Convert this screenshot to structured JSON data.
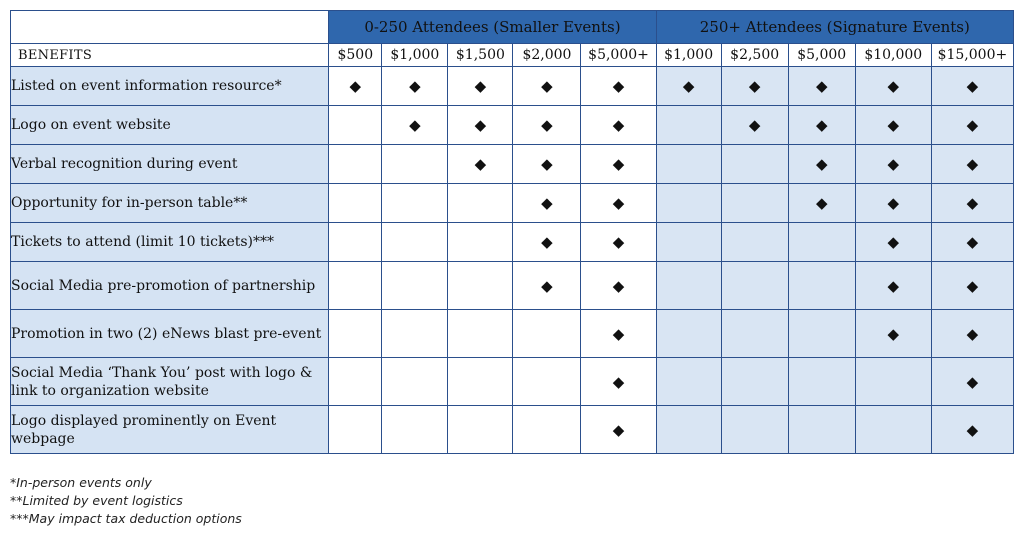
{
  "groups": {
    "small": "0-250 Attendees (Smaller Events)",
    "signature": "250+ Attendees (Signature Events)"
  },
  "benefits_header": "BENEFITS",
  "small_tiers": [
    "$500",
    "$1,000",
    "$1,500",
    "$2,000",
    "$5,000+"
  ],
  "signature_tiers": [
    "$1,000",
    "$2,500",
    "$5,000",
    "$10,000",
    "$15,000+"
  ],
  "marker": "◆",
  "rows": [
    {
      "benefit": "Listed on event information resource*",
      "small": [
        1,
        1,
        1,
        1,
        1
      ],
      "signature": [
        1,
        1,
        1,
        1,
        1
      ]
    },
    {
      "benefit": "Logo on event website",
      "small": [
        0,
        1,
        1,
        1,
        1
      ],
      "signature": [
        0,
        1,
        1,
        1,
        1
      ]
    },
    {
      "benefit": "Verbal recognition during event",
      "small": [
        0,
        0,
        1,
        1,
        1
      ],
      "signature": [
        0,
        0,
        1,
        1,
        1
      ]
    },
    {
      "benefit": "Opportunity for in-person table**",
      "small": [
        0,
        0,
        0,
        1,
        1
      ],
      "signature": [
        0,
        0,
        1,
        1,
        1
      ]
    },
    {
      "benefit": "Tickets to attend (limit 10 tickets)***",
      "small": [
        0,
        0,
        0,
        1,
        1
      ],
      "signature": [
        0,
        0,
        0,
        1,
        1
      ]
    },
    {
      "benefit": "Social Media pre-promotion of partnership",
      "small": [
        0,
        0,
        0,
        1,
        1
      ],
      "signature": [
        0,
        0,
        0,
        1,
        1
      ]
    },
    {
      "benefit": "Promotion in two (2) eNews blast pre-event",
      "small": [
        0,
        0,
        0,
        0,
        1
      ],
      "signature": [
        0,
        0,
        0,
        1,
        1
      ]
    },
    {
      "benefit": "Social Media ‘Thank You’ post with logo & link to organization website",
      "small": [
        0,
        0,
        0,
        0,
        1
      ],
      "signature": [
        0,
        0,
        0,
        0,
        1
      ]
    },
    {
      "benefit": "Logo displayed prominently on Event webpage",
      "small": [
        0,
        0,
        0,
        0,
        1
      ],
      "signature": [
        0,
        0,
        0,
        0,
        1
      ]
    }
  ],
  "footnotes": [
    "*In-person events only",
    "**Limited by event logistics",
    "***May impact tax deduction options"
  ],
  "colors": {
    "header_blue": "#2f67ad",
    "border_blue": "#2b4f8c",
    "benefit_bg": "#d5e3f3",
    "signature_bg": "#d9e5f3"
  }
}
